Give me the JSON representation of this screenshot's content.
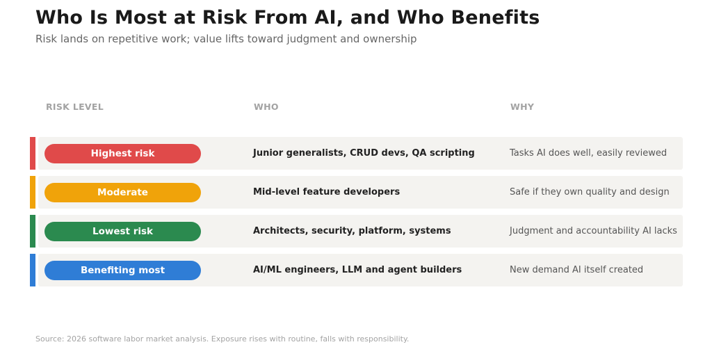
{
  "chart_data": {
    "type": "table",
    "title": "Who Is Most at Risk From AI, and Who Benefits",
    "subtitle": "Risk lands on repetitive work; value lifts toward judgment and ownership",
    "columns": [
      "RISK LEVEL",
      "WHO",
      "WHY"
    ],
    "rows": [
      {
        "level": "Highest risk",
        "who": "Junior generalists, CRUD devs, QA scripting",
        "why": "Tasks AI does well, easily reviewed",
        "color": "#e04a4a"
      },
      {
        "level": "Moderate",
        "who": "Mid-level feature developers",
        "why": "Safe if they own quality and design",
        "color": "#f0a30a"
      },
      {
        "level": "Lowest risk",
        "who": "Architects, security, platform, systems",
        "why": "Judgment and accountability AI lacks",
        "color": "#2b8a4f"
      },
      {
        "level": "Benefiting most",
        "who": "AI/ML engineers, LLM and agent builders",
        "why": "New demand AI itself created",
        "color": "#2f7dd6"
      }
    ],
    "source": "Source: 2026 software labor market analysis. Exposure rises with routine, falls with responsibility."
  }
}
